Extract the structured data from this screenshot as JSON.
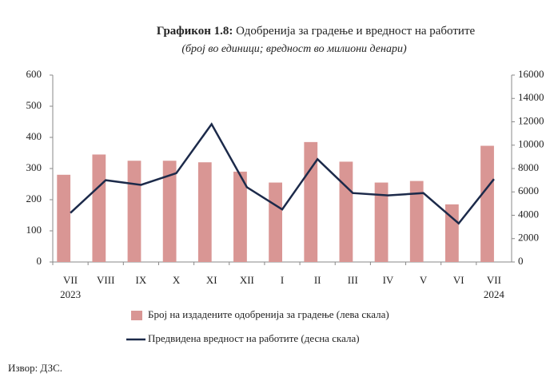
{
  "chart_data": {
    "type": "bar_line",
    "title_number": "Графикон 1.8:",
    "title": "Одобренија за градење и вредност на работите",
    "subtitle": "(број  во единици; вредност во милиони денари)",
    "categories": [
      "VII",
      "VIII",
      "IX",
      "X",
      "XI",
      "XII",
      "I",
      "II",
      "III",
      "IV",
      "V",
      "VI",
      "VII"
    ],
    "year_labels": [
      {
        "index": 0,
        "label": "2023"
      },
      {
        "index": 12,
        "label": "2024"
      }
    ],
    "series": [
      {
        "name": "Број на издадените одобренија за градење (лева скала)",
        "color": "#d99694",
        "kind": "bar",
        "axis": "y",
        "values": [
          280,
          345,
          325,
          325,
          320,
          290,
          255,
          385,
          322,
          255,
          260,
          185,
          373
        ]
      },
      {
        "name": "Предвидена вредност на работите (десна скала)",
        "color": "#1c2a4a",
        "kind": "line",
        "axis": "y2",
        "values": [
          4200,
          7000,
          6600,
          7600,
          11800,
          6400,
          4500,
          8800,
          5900,
          5700,
          5900,
          3300,
          7100
        ]
      }
    ],
    "ylim": [
      0,
      600
    ],
    "yticks": [
      0,
      100,
      200,
      300,
      400,
      500,
      600
    ],
    "y2lim": [
      0,
      16000
    ],
    "y2ticks": [
      0,
      2000,
      4000,
      6000,
      8000,
      10000,
      12000,
      14000,
      16000
    ],
    "source": "Извор: ДЗС."
  }
}
